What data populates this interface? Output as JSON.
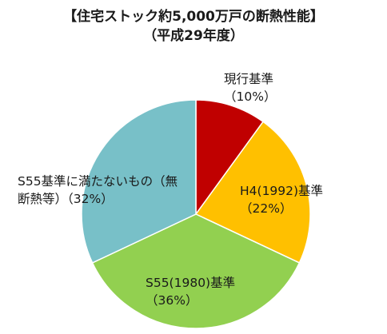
{
  "chart_data": {
    "type": "pie",
    "title": "【住宅ストック約5,000万戸の断熱性能】",
    "subtitle": "（平成29年度）",
    "categories": [
      "現行基準",
      "H4(1992)基準",
      "S55(1980)基準",
      "S55基準に満たないもの（無断熱等）"
    ],
    "values": [
      10,
      22,
      36,
      32
    ],
    "value_labels": [
      "（10%）",
      "（22%）",
      "（36%）",
      "（32%）"
    ],
    "colors": [
      "#c00000",
      "#ffc000",
      "#92d050",
      "#78c0c8"
    ]
  }
}
